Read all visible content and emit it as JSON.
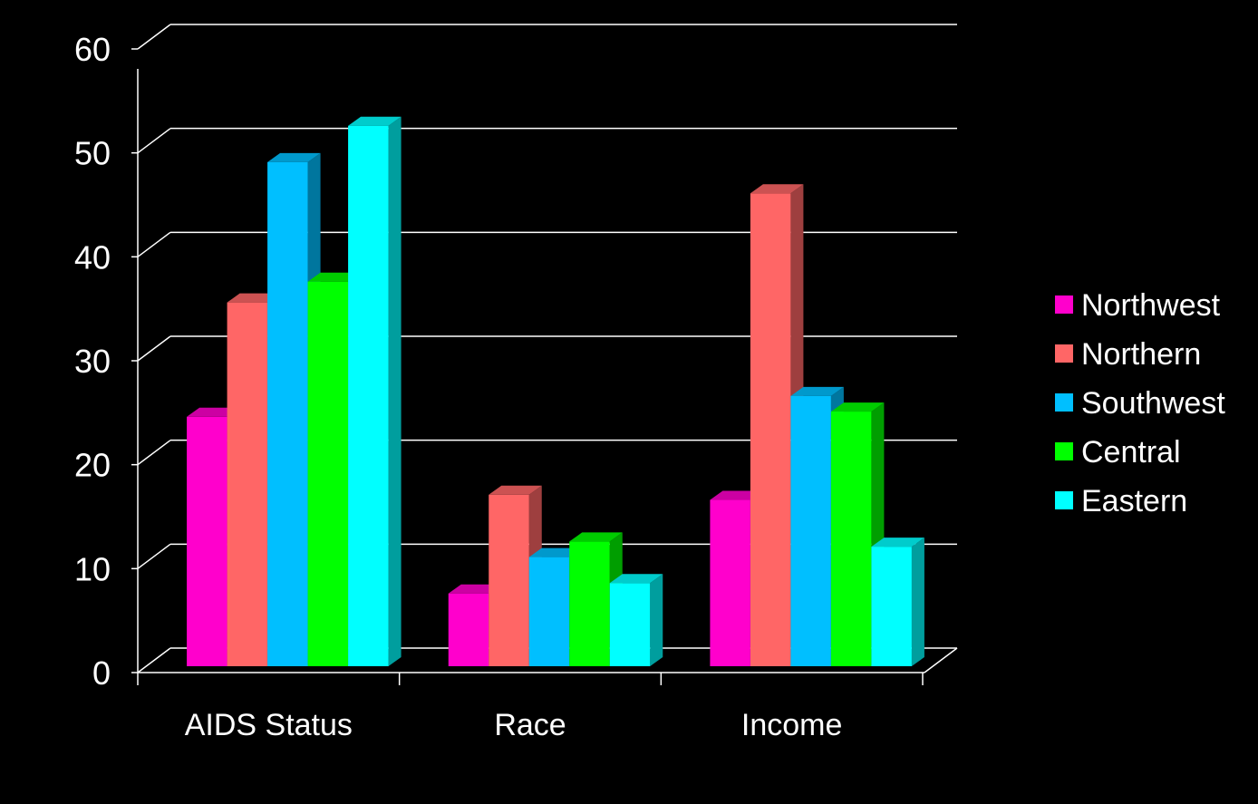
{
  "chart_data": {
    "type": "bar",
    "three_d": true,
    "background": "#000000",
    "categories": [
      "AIDS Status",
      "Race",
      "Income"
    ],
    "series": [
      {
        "name": "Northwest",
        "color": "#FF00CC",
        "values": [
          24,
          7,
          16
        ]
      },
      {
        "name": "Northern",
        "color": "#FF6666",
        "values": [
          35,
          16.5,
          45.5
        ]
      },
      {
        "name": "Southwest",
        "color": "#00BFFF",
        "values": [
          48.5,
          10.5,
          26
        ]
      },
      {
        "name": "Central",
        "color": "#00FF00",
        "values": [
          37,
          12,
          24.5
        ]
      },
      {
        "name": "Eastern",
        "color": "#00FFFF",
        "values": [
          52,
          8,
          11.5
        ]
      }
    ],
    "ylim": [
      0,
      60
    ],
    "yticks": [
      0,
      10,
      20,
      30,
      40,
      50,
      60
    ],
    "ytick_labels": [
      "0",
      "10",
      "20",
      "30",
      "40",
      "50",
      "60"
    ],
    "title": "",
    "xlabel": "",
    "ylabel": "",
    "grid": true,
    "grid_color": "#FFFFFF",
    "legend_position": "right"
  }
}
